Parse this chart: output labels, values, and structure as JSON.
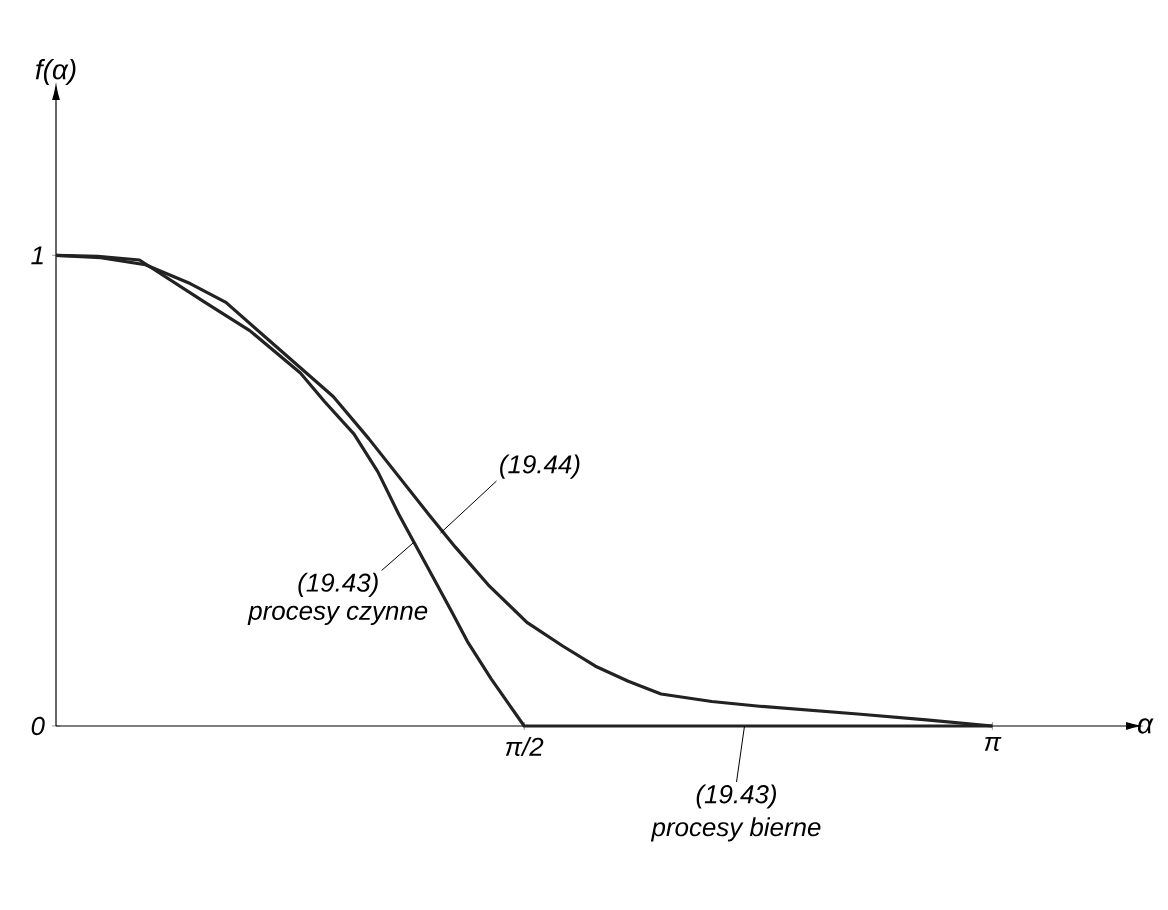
{
  "chart_data": {
    "type": "line",
    "xlabel": "α",
    "ylabel": "f(α)",
    "xlim": [
      0,
      3.59
    ],
    "ylim": [
      0,
      1.33
    ],
    "xticks": [
      {
        "value": 1.5708,
        "label": "π/2"
      },
      {
        "value": 3.1416,
        "label": "π"
      }
    ],
    "yticks": [
      0,
      1
    ],
    "series": [
      {
        "color": "#222222",
        "x": [
          0,
          0.14,
          0.28,
          0.5,
          0.65,
          0.82,
          0.9,
          1.0,
          1.08,
          1.15,
          1.21,
          1.27,
          1.33,
          1.38,
          1.46,
          1.5708,
          2.0,
          2.5,
          3.1416
        ],
        "values": [
          1,
          0.998,
          0.99,
          0.9,
          0.84,
          0.75,
          0.69,
          0.62,
          0.54,
          0.45,
          0.38,
          0.31,
          0.24,
          0.18,
          0.1,
          0,
          0,
          0,
          0
        ]
      },
      {
        "color": "#222222",
        "x": [
          0,
          0.15,
          0.3,
          0.45,
          0.57,
          0.75,
          0.93,
          1.05,
          1.15,
          1.25,
          1.34,
          1.45,
          1.58,
          1.7,
          1.81,
          1.92,
          2.03,
          2.2,
          2.36,
          2.7,
          2.92,
          3.1416
        ],
        "values": [
          1,
          0.995,
          0.98,
          0.94,
          0.9,
          0.8,
          0.7,
          0.61,
          0.53,
          0.45,
          0.38,
          0.3,
          0.22,
          0.17,
          0.127,
          0.095,
          0.068,
          0.052,
          0.042,
          0.025,
          0.013,
          0
        ]
      }
    ],
    "annotations": [
      {
        "text": "(19.44)",
        "x": 1.29,
        "y": 0.41
      },
      {
        "text": "(19.43)",
        "x": 1.2,
        "y": 0.39
      },
      "procesy czynne",
      {
        "text": "(19.43)",
        "x": 2.31,
        "y": 0
      },
      "procesy bierne"
    ],
    "marker": "none",
    "line_style": "solid",
    "grid": false
  }
}
